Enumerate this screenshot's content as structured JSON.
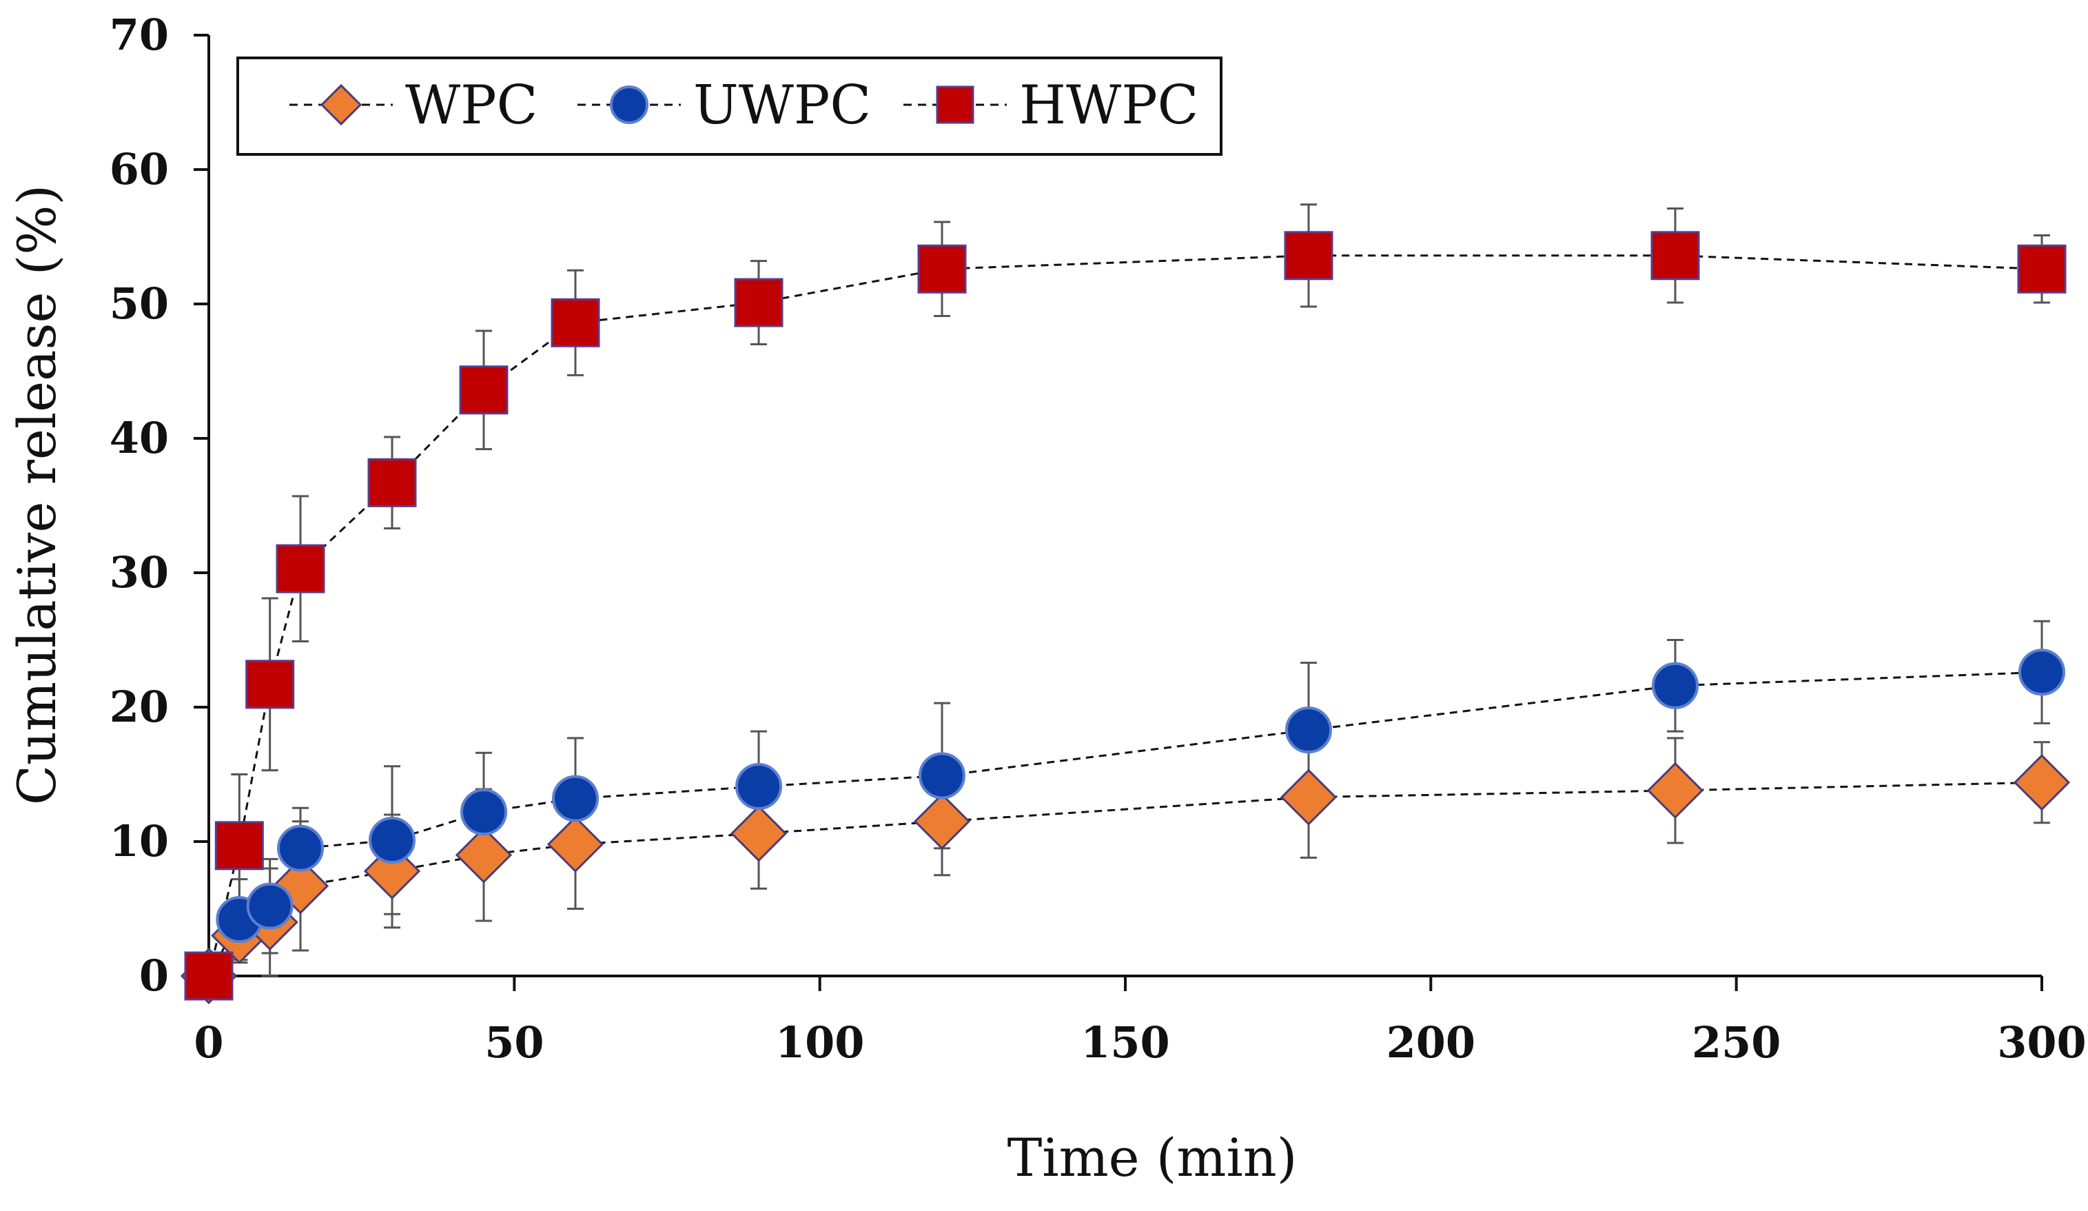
{
  "chart_data": {
    "type": "line",
    "title": "",
    "xlabel": "Time (min)",
    "ylabel": "Cumulative release (%)",
    "xlim": [
      0,
      300
    ],
    "ylim": [
      0,
      70
    ],
    "xticks": [
      0,
      50,
      100,
      150,
      200,
      250,
      300
    ],
    "yticks": [
      0,
      10,
      20,
      30,
      40,
      50,
      60,
      70
    ],
    "grid": false,
    "legend_position": "top-left",
    "line_style": "dashed",
    "x": [
      0,
      5,
      10,
      15,
      30,
      45,
      60,
      90,
      120,
      180,
      240,
      300
    ],
    "series": [
      {
        "name": "WPC",
        "marker": "diamond",
        "color": "#ED7D31",
        "edge_color": "#4A3C7A",
        "values": [
          0,
          3.0,
          4.0,
          6.7,
          7.8,
          9.0,
          9.8,
          10.6,
          11.5,
          13.3,
          13.8,
          14.4
        ],
        "errors": [
          0,
          2.0,
          4.0,
          4.8,
          4.2,
          4.9,
          4.8,
          4.1,
          4.0,
          4.5,
          3.9,
          3.0
        ]
      },
      {
        "name": "UWPC",
        "marker": "circle",
        "color": "#0B3DA6",
        "edge_color": "#5B7FD1",
        "values": [
          0,
          4.2,
          5.2,
          9.5,
          10.1,
          12.2,
          13.2,
          14.1,
          14.9,
          18.3,
          21.6,
          22.6
        ],
        "errors": [
          0,
          3.0,
          3.5,
          3.0,
          5.5,
          4.4,
          4.5,
          4.1,
          5.4,
          5.0,
          3.4,
          3.8
        ]
      },
      {
        "name": "HWPC",
        "marker": "square",
        "color": "#C00000",
        "edge_color": "#5B3A8C",
        "values": [
          0,
          9.7,
          21.7,
          30.3,
          36.7,
          43.6,
          48.6,
          50.1,
          52.6,
          53.6,
          53.6,
          52.6
        ],
        "errors": [
          0,
          5.3,
          6.4,
          5.4,
          3.4,
          4.4,
          3.9,
          3.1,
          3.5,
          3.8,
          3.5,
          2.5
        ]
      }
    ]
  }
}
